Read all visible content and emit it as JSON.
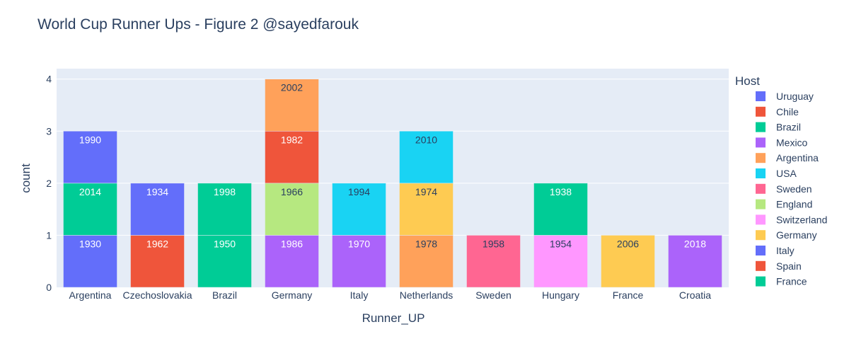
{
  "chart_data": {
    "type": "bar",
    "barmode": "stack",
    "title": "World Cup Runner Ups - Figure 2 @sayedfarouk",
    "xlabel": "Runner_UP",
    "ylabel": "count",
    "ylim": [
      0,
      4.2
    ],
    "yticks": [
      0,
      1,
      2,
      3,
      4
    ],
    "categories": [
      "Argentina",
      "Czechoslovakia",
      "Brazil",
      "Germany",
      "Italy",
      "Netherlands",
      "Sweden",
      "Hungary",
      "France",
      "Croatia"
    ],
    "legend_title": "Host",
    "legend_position": "right",
    "series": [
      {
        "name": "Uruguay",
        "color": "#636efa",
        "points": [
          {
            "category": "Argentina",
            "value": 1,
            "label": "1930"
          }
        ]
      },
      {
        "name": "Chile",
        "color": "#EF553B",
        "points": [
          {
            "category": "Czechoslovakia",
            "value": 1,
            "label": "1962"
          }
        ]
      },
      {
        "name": "Brazil",
        "color": "#00cc96",
        "points": [
          {
            "category": "Brazil",
            "value": 1,
            "label": "1950"
          },
          {
            "category": "Argentina",
            "value": 1,
            "label": "2014"
          },
          {
            "category": "Brazil",
            "value": 1,
            "label": "1998"
          }
        ]
      },
      {
        "name": "Mexico",
        "color": "#ab63fa",
        "points": [
          {
            "category": "Germany",
            "value": 1,
            "label": "1986"
          },
          {
            "category": "Italy",
            "value": 1,
            "label": "1970"
          }
        ]
      },
      {
        "name": "Argentina",
        "color": "#FFA15A",
        "points": [
          {
            "category": "Netherlands",
            "value": 1,
            "label": "1978"
          }
        ]
      },
      {
        "name": "USA",
        "color": "#19d3f3",
        "points": [
          {
            "category": "Italy",
            "value": 1,
            "label": "1994"
          }
        ]
      },
      {
        "name": "Sweden",
        "color": "#FF6692",
        "points": [
          {
            "category": "Sweden",
            "value": 1,
            "label": "1958"
          }
        ]
      },
      {
        "name": "England",
        "color": "#B6E880",
        "points": [
          {
            "category": "Germany",
            "value": 1,
            "label": "1966"
          }
        ]
      },
      {
        "name": "Switzerland",
        "color": "#FF97FF",
        "points": [
          {
            "category": "Hungary",
            "value": 1,
            "label": "1954"
          }
        ]
      },
      {
        "name": "Germany",
        "color": "#FECB52",
        "points": [
          {
            "category": "Netherlands",
            "value": 1,
            "label": "1974"
          },
          {
            "category": "France",
            "value": 1,
            "label": "2006"
          }
        ]
      },
      {
        "name": "Italy",
        "color": "#636efa",
        "points": [
          {
            "category": "Argentina",
            "value": 1,
            "label": "1990"
          },
          {
            "category": "Czechoslovakia",
            "value": 1,
            "label": "1934"
          }
        ]
      },
      {
        "name": "Spain",
        "color": "#EF553B",
        "points": [
          {
            "category": "Germany",
            "value": 1,
            "label": "1982"
          }
        ]
      },
      {
        "name": "France",
        "color": "#00cc96",
        "points": [
          {
            "category": "Hungary",
            "value": 1,
            "label": "1938"
          }
        ]
      }
    ],
    "extra_series_points": [
      {
        "series": "Argentina",
        "category": "Germany",
        "value": 1,
        "label": "2002"
      },
      {
        "series": "USA",
        "category": "Netherlands",
        "value": 1,
        "label": "2010"
      },
      {
        "series": "Mexico",
        "category": "Croatia",
        "value": 1,
        "label": "2018"
      }
    ]
  }
}
